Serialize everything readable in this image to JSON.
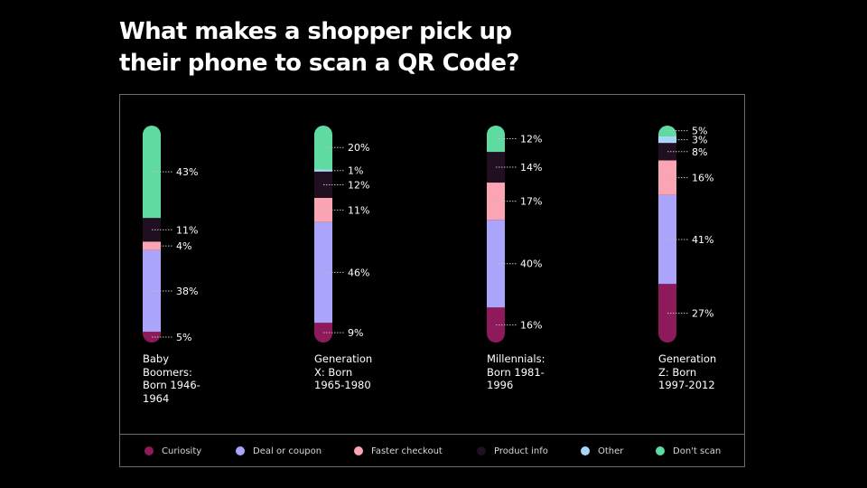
{
  "title_lines": [
    "What makes a shopper pick up",
    "their phone to scan a QR Code?"
  ],
  "chart_data": {
    "type": "bar",
    "stacked": true,
    "orientation": "vertical",
    "title": "What makes a shopper pick up their phone to scan a QR Code?",
    "unit": "%",
    "ylim": [
      0,
      100
    ],
    "grid": false,
    "legend_position": "bottom",
    "categories": [
      "Baby Boomers: Born 1946-1964",
      "Generation X: Born 1965-1980",
      "Millennials: Born 1981-1996",
      "Generation Z: Born 1997-2012"
    ],
    "category_label_lines": [
      [
        "Baby",
        "Boomers:",
        "Born 1946-",
        "1964"
      ],
      [
        "Generation",
        "X: Born",
        "1965-1980"
      ],
      [
        "Millennials:",
        "Born 1981-",
        "1996"
      ],
      [
        "Generation",
        "Z: Born",
        "1997-2012"
      ]
    ],
    "series": [
      {
        "name": "Curiosity",
        "color": "#8e1a5c",
        "values": [
          5,
          9,
          16,
          27
        ]
      },
      {
        "name": "Deal or coupon",
        "color": "#aaa4fb",
        "values": [
          38,
          46,
          40,
          41
        ]
      },
      {
        "name": "Faster checkout",
        "color": "#fba4b4",
        "values": [
          4,
          11,
          17,
          16
        ]
      },
      {
        "name": "Product info",
        "color": "#1f0f20",
        "values": [
          11,
          12,
          14,
          8
        ]
      },
      {
        "name": "Other",
        "color": "#a9d7fb",
        "values": [
          0,
          1,
          0,
          3
        ]
      },
      {
        "name": "Don't scan",
        "color": "#5fdba1",
        "values": [
          43,
          20,
          12,
          5
        ]
      }
    ],
    "data_labels": [
      [
        {
          "series": "Curiosity",
          "text": "5%"
        },
        {
          "series": "Deal or coupon",
          "text": "38%"
        },
        {
          "series": "Faster checkout",
          "text": "4%"
        },
        {
          "series": "Product info",
          "text": "11%"
        },
        {
          "series": "Don't scan",
          "text": "43%"
        }
      ],
      [
        {
          "series": "Curiosity",
          "text": "9%"
        },
        {
          "series": "Deal or coupon",
          "text": "46%"
        },
        {
          "series": "Faster checkout",
          "text": "11%"
        },
        {
          "series": "Product info",
          "text": "12%"
        },
        {
          "series": "Other",
          "text": "1%"
        },
        {
          "series": "Don't scan",
          "text": "20%"
        }
      ],
      [
        {
          "series": "Curiosity",
          "text": "16%"
        },
        {
          "series": "Deal or coupon",
          "text": "40%"
        },
        {
          "series": "Faster checkout",
          "text": "17%"
        },
        {
          "series": "Product info",
          "text": "14%"
        },
        {
          "series": "Don't scan",
          "text": "12%"
        }
      ],
      [
        {
          "series": "Curiosity",
          "text": "27%"
        },
        {
          "series": "Deal or coupon",
          "text": "41%"
        },
        {
          "series": "Faster checkout",
          "text": "16%"
        },
        {
          "series": "Product info",
          "text": "8%"
        },
        {
          "series": "Other",
          "text": "3%"
        },
        {
          "series": "Don't scan",
          "text": "5%"
        }
      ]
    ]
  }
}
